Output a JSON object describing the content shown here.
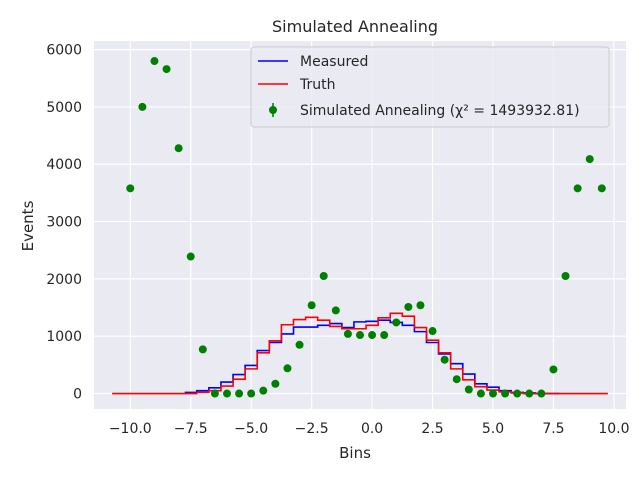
{
  "chart_data": {
    "type": "line",
    "title": "Simulated Annealing",
    "xlabel": "Bins",
    "ylabel": "Events",
    "xlim": [
      -11.5,
      10.5
    ],
    "ylim": [
      -270,
      6150
    ],
    "x_ticks": [
      -10.0,
      -7.5,
      -5.0,
      -2.5,
      0.0,
      2.5,
      5.0,
      7.5,
      10.0
    ],
    "x_tick_labels": [
      "−10.0",
      "−7.5",
      "−5.0",
      "−2.5",
      "0.0",
      "2.5",
      "5.0",
      "7.5",
      "10.0"
    ],
    "y_ticks": [
      0,
      1000,
      2000,
      3000,
      4000,
      5000,
      6000
    ],
    "y_tick_labels": [
      "0",
      "1000",
      "2000",
      "3000",
      "4000",
      "5000",
      "6000"
    ],
    "grid": true,
    "legend_position": "top-right",
    "legend": [
      "Measured",
      "Truth",
      "Simulated Annealing (χ² = 1493932.81)"
    ],
    "series": [
      {
        "name": "Measured",
        "style": "step",
        "color": "#0000ff",
        "x": [
          -7.5,
          -7.0,
          -6.5,
          -6.0,
          -5.5,
          -5.0,
          -4.5,
          -4.0,
          -3.5,
          -3.0,
          -2.5,
          -2.0,
          -1.5,
          -1.0,
          -0.5,
          0.0,
          0.5,
          1.0,
          1.5,
          2.0,
          2.5,
          3.0,
          3.5,
          4.0,
          4.5,
          5.0,
          5.5,
          6.0,
          6.5,
          7.0,
          7.5
        ],
        "y": [
          20,
          50,
          100,
          200,
          330,
          490,
          750,
          890,
          1040,
          1160,
          1160,
          1190,
          1220,
          1150,
          1250,
          1260,
          1280,
          1240,
          1190,
          1080,
          890,
          690,
          520,
          340,
          170,
          110,
          50,
          20,
          10,
          0,
          0
        ]
      },
      {
        "name": "Truth",
        "style": "step",
        "color": "#ff0000",
        "x": [
          -10.5,
          -10.0,
          -9.5,
          -9.0,
          -8.5,
          -8.0,
          -7.5,
          -7.0,
          -6.5,
          -6.0,
          -5.5,
          -5.0,
          -4.5,
          -4.0,
          -3.5,
          -3.0,
          -2.5,
          -2.0,
          -1.5,
          -1.0,
          -0.5,
          0.0,
          0.5,
          1.0,
          1.5,
          2.0,
          2.5,
          3.0,
          3.5,
          4.0,
          4.5,
          5.0,
          5.5,
          6.0,
          6.5,
          7.0,
          7.5,
          8.0,
          8.5,
          9.0,
          9.5
        ],
        "y": [
          0,
          0,
          0,
          0,
          0,
          0,
          0,
          20,
          50,
          130,
          250,
          430,
          710,
          920,
          1200,
          1290,
          1330,
          1280,
          1170,
          1130,
          1130,
          1190,
          1320,
          1400,
          1350,
          1150,
          930,
          710,
          430,
          240,
          120,
          60,
          30,
          10,
          0,
          0,
          0,
          0,
          0,
          0,
          0
        ]
      },
      {
        "name": "Simulated Annealing (χ² = 1493932.81)",
        "style": "scatter",
        "color": "#008000",
        "x": [
          -10.0,
          -9.5,
          -9.0,
          -8.5,
          -8.0,
          -7.5,
          -7.0,
          -6.5,
          -6.0,
          -5.5,
          -5.0,
          -4.5,
          -4.0,
          -3.5,
          -3.0,
          -2.5,
          -2.0,
          -1.5,
          -1.0,
          -0.5,
          0.0,
          0.5,
          1.0,
          1.5,
          2.0,
          2.5,
          3.0,
          3.5,
          4.0,
          4.5,
          5.0,
          5.5,
          6.0,
          6.5,
          7.0,
          7.5,
          8.0,
          8.5,
          9.0,
          9.5
        ],
        "y": [
          3580,
          5000,
          5800,
          5660,
          4280,
          2390,
          770,
          0,
          0,
          0,
          0,
          50,
          170,
          440,
          850,
          1540,
          2050,
          1450,
          1040,
          1020,
          1020,
          1020,
          1240,
          1510,
          1540,
          1090,
          590,
          250,
          70,
          0,
          0,
          0,
          0,
          0,
          0,
          420,
          2050,
          3580,
          4090,
          3580
        ]
      }
    ]
  }
}
